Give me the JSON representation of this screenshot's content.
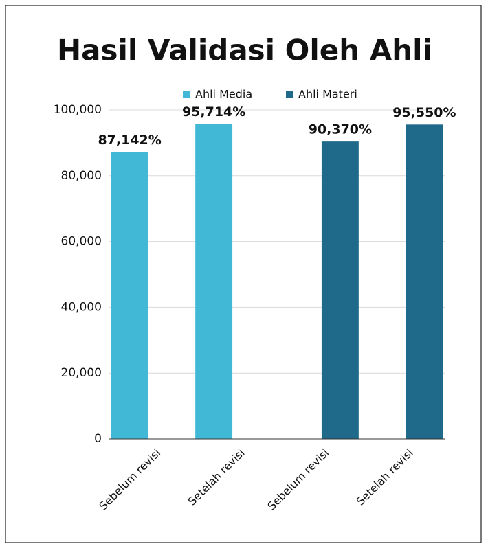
{
  "chart_data": {
    "type": "bar",
    "title": "Hasil Validasi Oleh Ahli",
    "categories": [
      "Sebelum revisi",
      "Setelah revisi",
      "Sebelum revisi",
      "Setelah revisi"
    ],
    "series": [
      {
        "name": "Ahli Media",
        "color": "#41b8d5",
        "values": [
          87.142,
          95.714,
          null,
          null
        ],
        "value_labels": [
          "87,142%",
          "95,714%",
          null,
          null
        ]
      },
      {
        "name": "Ahli Materi",
        "color": "#1f6a8a",
        "values": [
          null,
          null,
          90.37,
          95.55
        ],
        "value_labels": [
          null,
          null,
          "90,370%",
          "95,550%"
        ]
      }
    ],
    "ylim": [
      0,
      100
    ],
    "yticks": [
      0,
      {
        "value": 20,
        "label": "20,000"
      },
      {
        "value": 40,
        "label": "40,000"
      },
      {
        "value": 60,
        "label": "60,000"
      },
      {
        "value": 80,
        "label": "80,000"
      },
      {
        "value": 100,
        "label": "100,000"
      }
    ],
    "grid": true,
    "legend": "top"
  }
}
